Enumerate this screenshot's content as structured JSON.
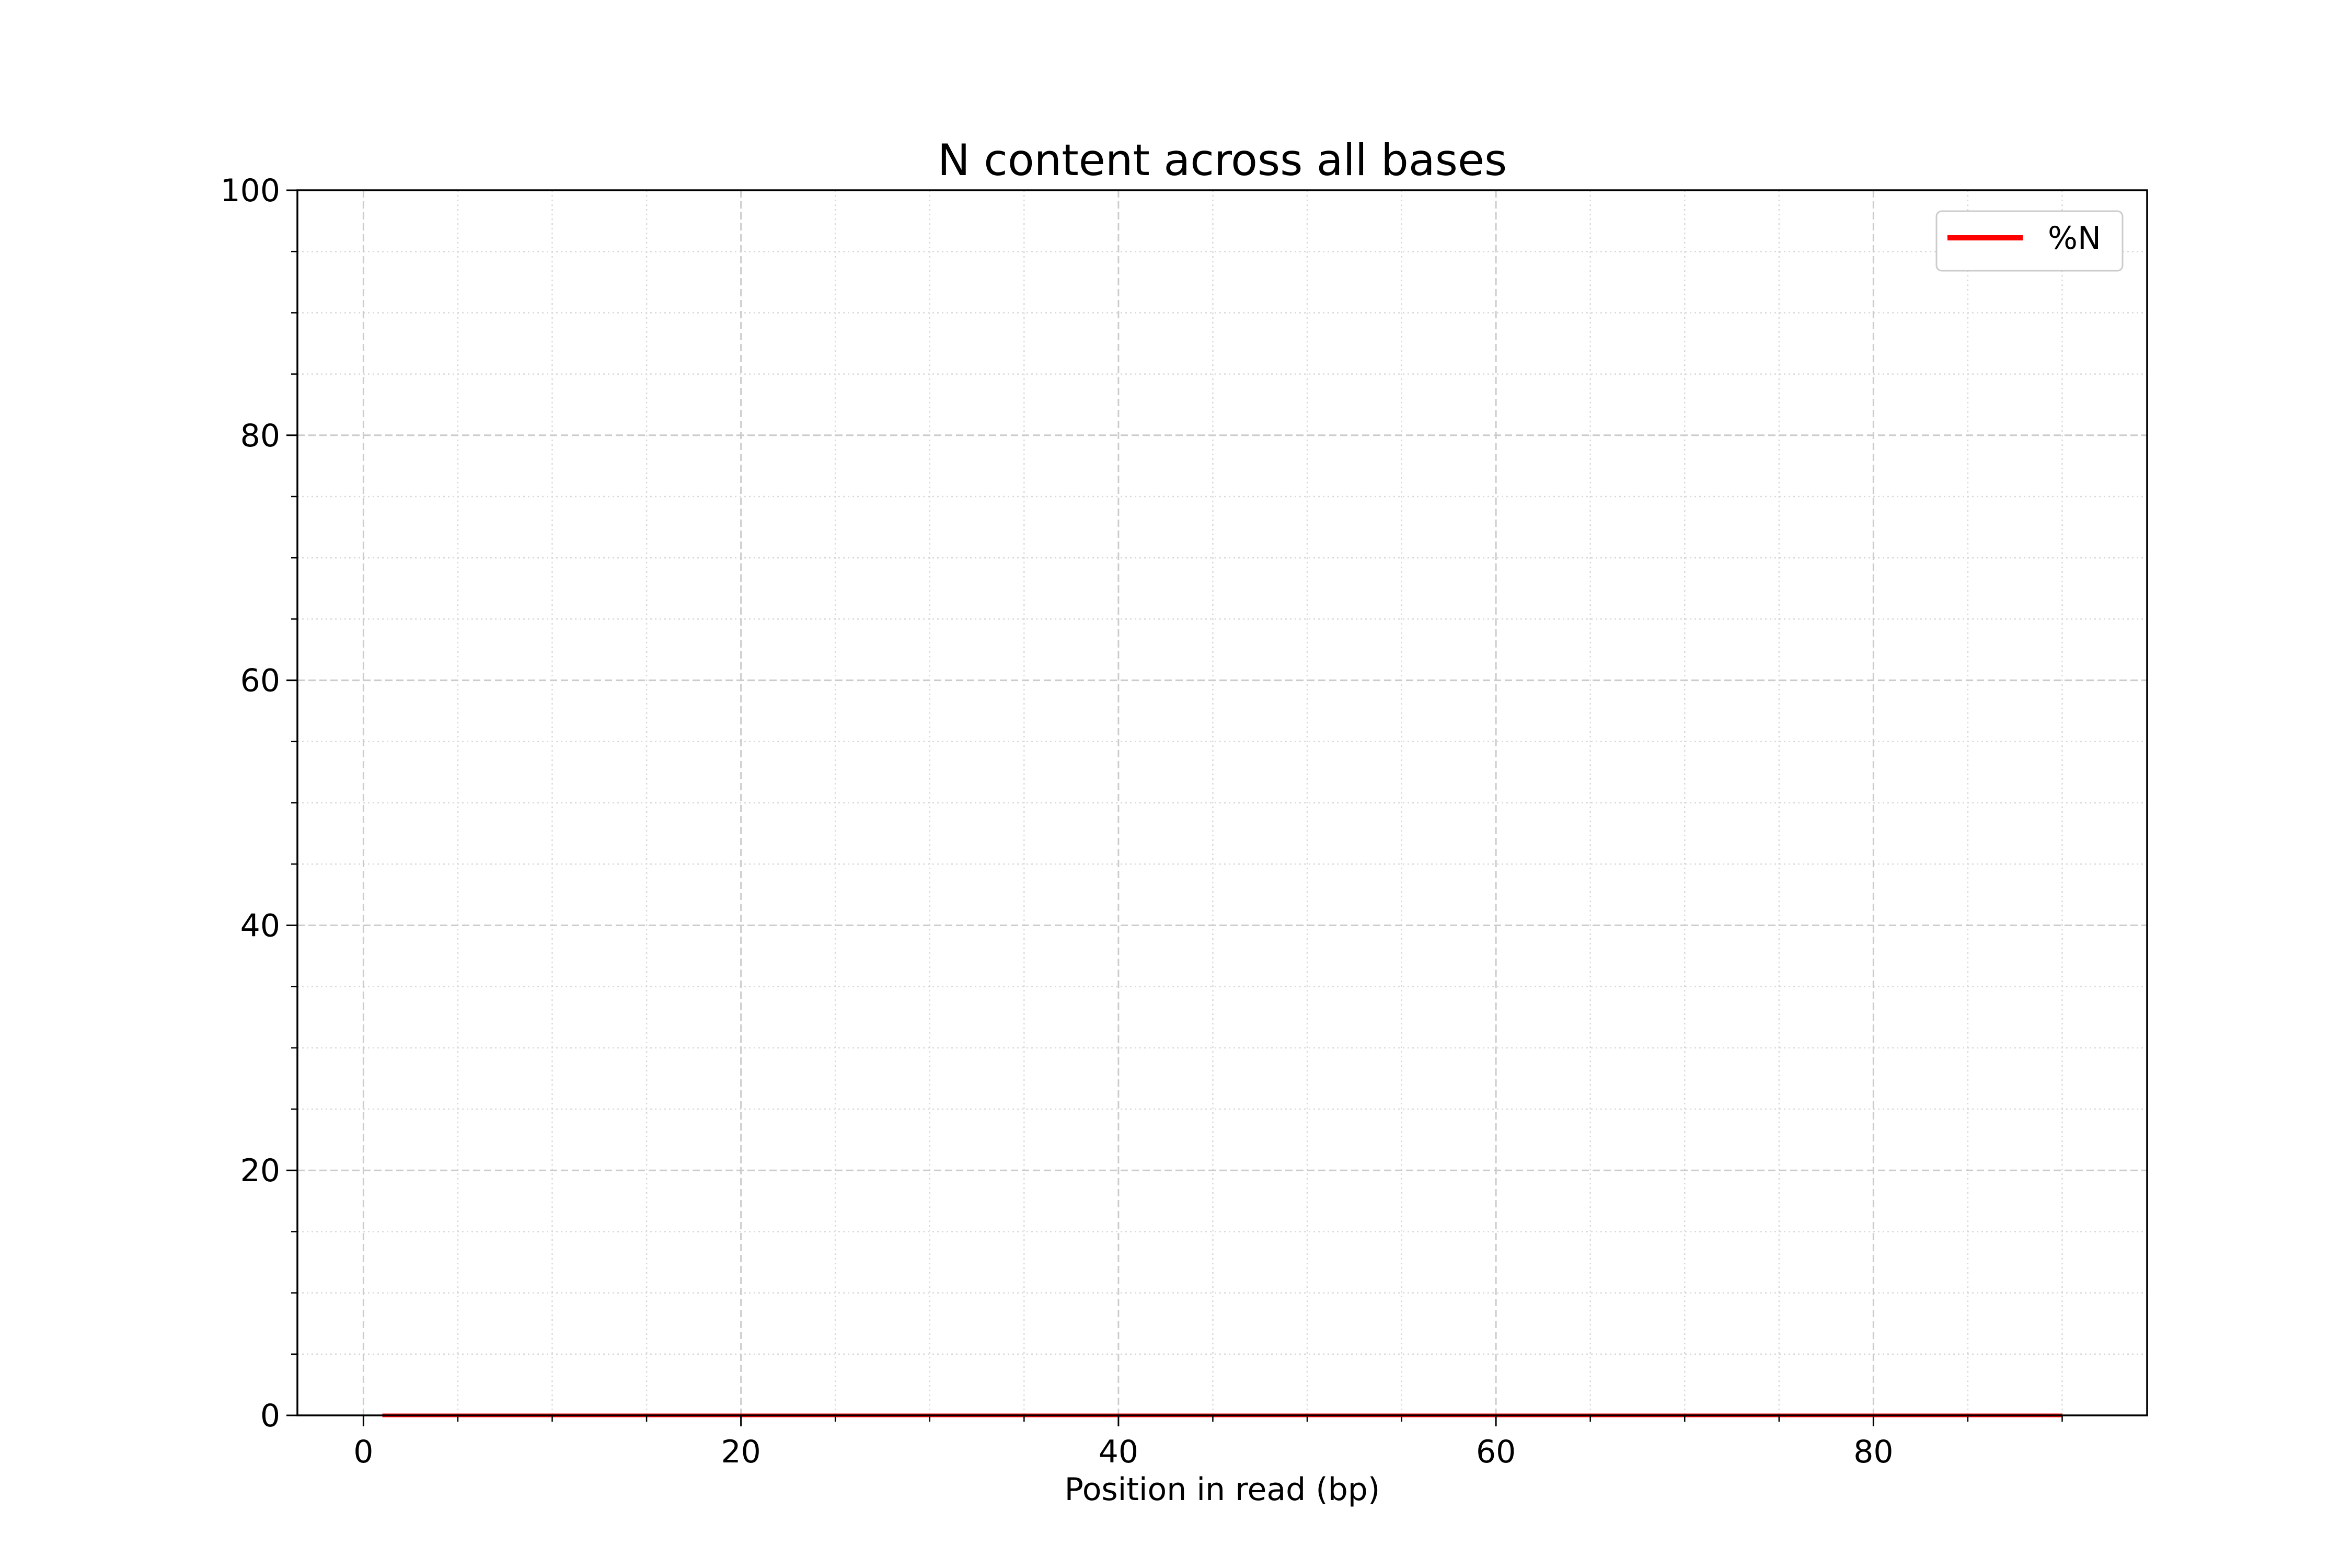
{
  "chart_data": {
    "type": "line",
    "title": "N content across all bases",
    "xlabel": "Position in read (bp)",
    "ylabel": "",
    "xlim": [
      -3.5,
      94.5
    ],
    "ylim": [
      0,
      100
    ],
    "x_major_ticks": [
      0,
      20,
      40,
      60,
      80
    ],
    "x_minor_ticks": [
      5,
      10,
      15,
      25,
      30,
      35,
      45,
      50,
      55,
      65,
      70,
      75,
      85,
      90
    ],
    "y_major_ticks": [
      0,
      20,
      40,
      60,
      80,
      100
    ],
    "y_minor_ticks": [
      5,
      10,
      15,
      25,
      30,
      35,
      45,
      50,
      55,
      65,
      70,
      75,
      85,
      90,
      95
    ],
    "grid": true,
    "legend_position": "top-right",
    "series": [
      {
        "name": "%N",
        "color": "#ff0000",
        "x": [
          1,
          90
        ],
        "y": [
          0,
          0
        ]
      }
    ]
  }
}
